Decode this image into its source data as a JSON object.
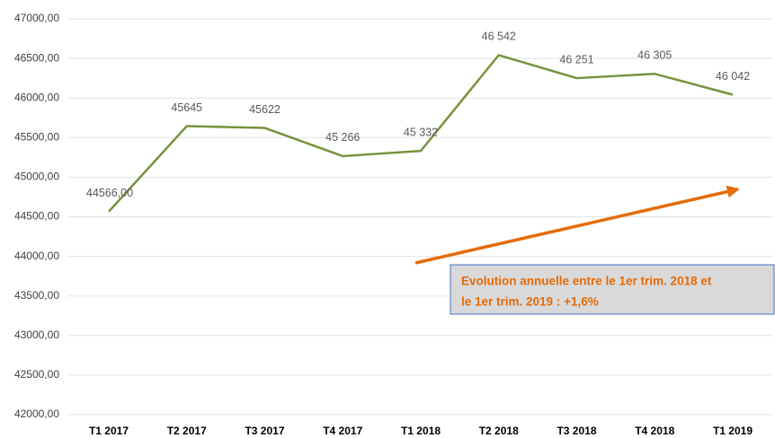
{
  "chart_data": {
    "type": "line",
    "categories": [
      "T1 2017",
      "T2 2017",
      "T3 2017",
      "T4 2017",
      "T1 2018",
      "T2 2018",
      "T3 2018",
      "T4 2018",
      "T1 2019"
    ],
    "series": [
      {
        "name": null,
        "color": "#77933c",
        "values": [
          44566,
          45645,
          45622,
          45266,
          45332,
          46542,
          46251,
          46305,
          46042
        ],
        "value_labels": [
          "44566,00",
          "45645",
          "45622",
          "45 266",
          "45 332",
          "46 542",
          "46 251",
          "46 305",
          "46 042"
        ]
      }
    ],
    "ylim": [
      42000,
      47000
    ],
    "yticks": [
      {
        "value": 42000,
        "label": "42000,00"
      },
      {
        "value": 42500,
        "label": "42500,00"
      },
      {
        "value": 43000,
        "label": "43000,00"
      },
      {
        "value": 43500,
        "label": "43500,00"
      },
      {
        "value": 44000,
        "label": "44000,00"
      },
      {
        "value": 44500,
        "label": "44500,00"
      },
      {
        "value": 45000,
        "label": "45000,00"
      },
      {
        "value": 45500,
        "label": "45500,00"
      },
      {
        "value": 46000,
        "label": "46000,00"
      },
      {
        "value": 46500,
        "label": "46500,00"
      },
      {
        "value": 47000,
        "label": "47000,00"
      }
    ],
    "grid": true,
    "annotation": [
      "Evolution annuelle entre le 1er trim. 2018 et",
      "le 1er trim. 2019 : +1,6%"
    ]
  }
}
